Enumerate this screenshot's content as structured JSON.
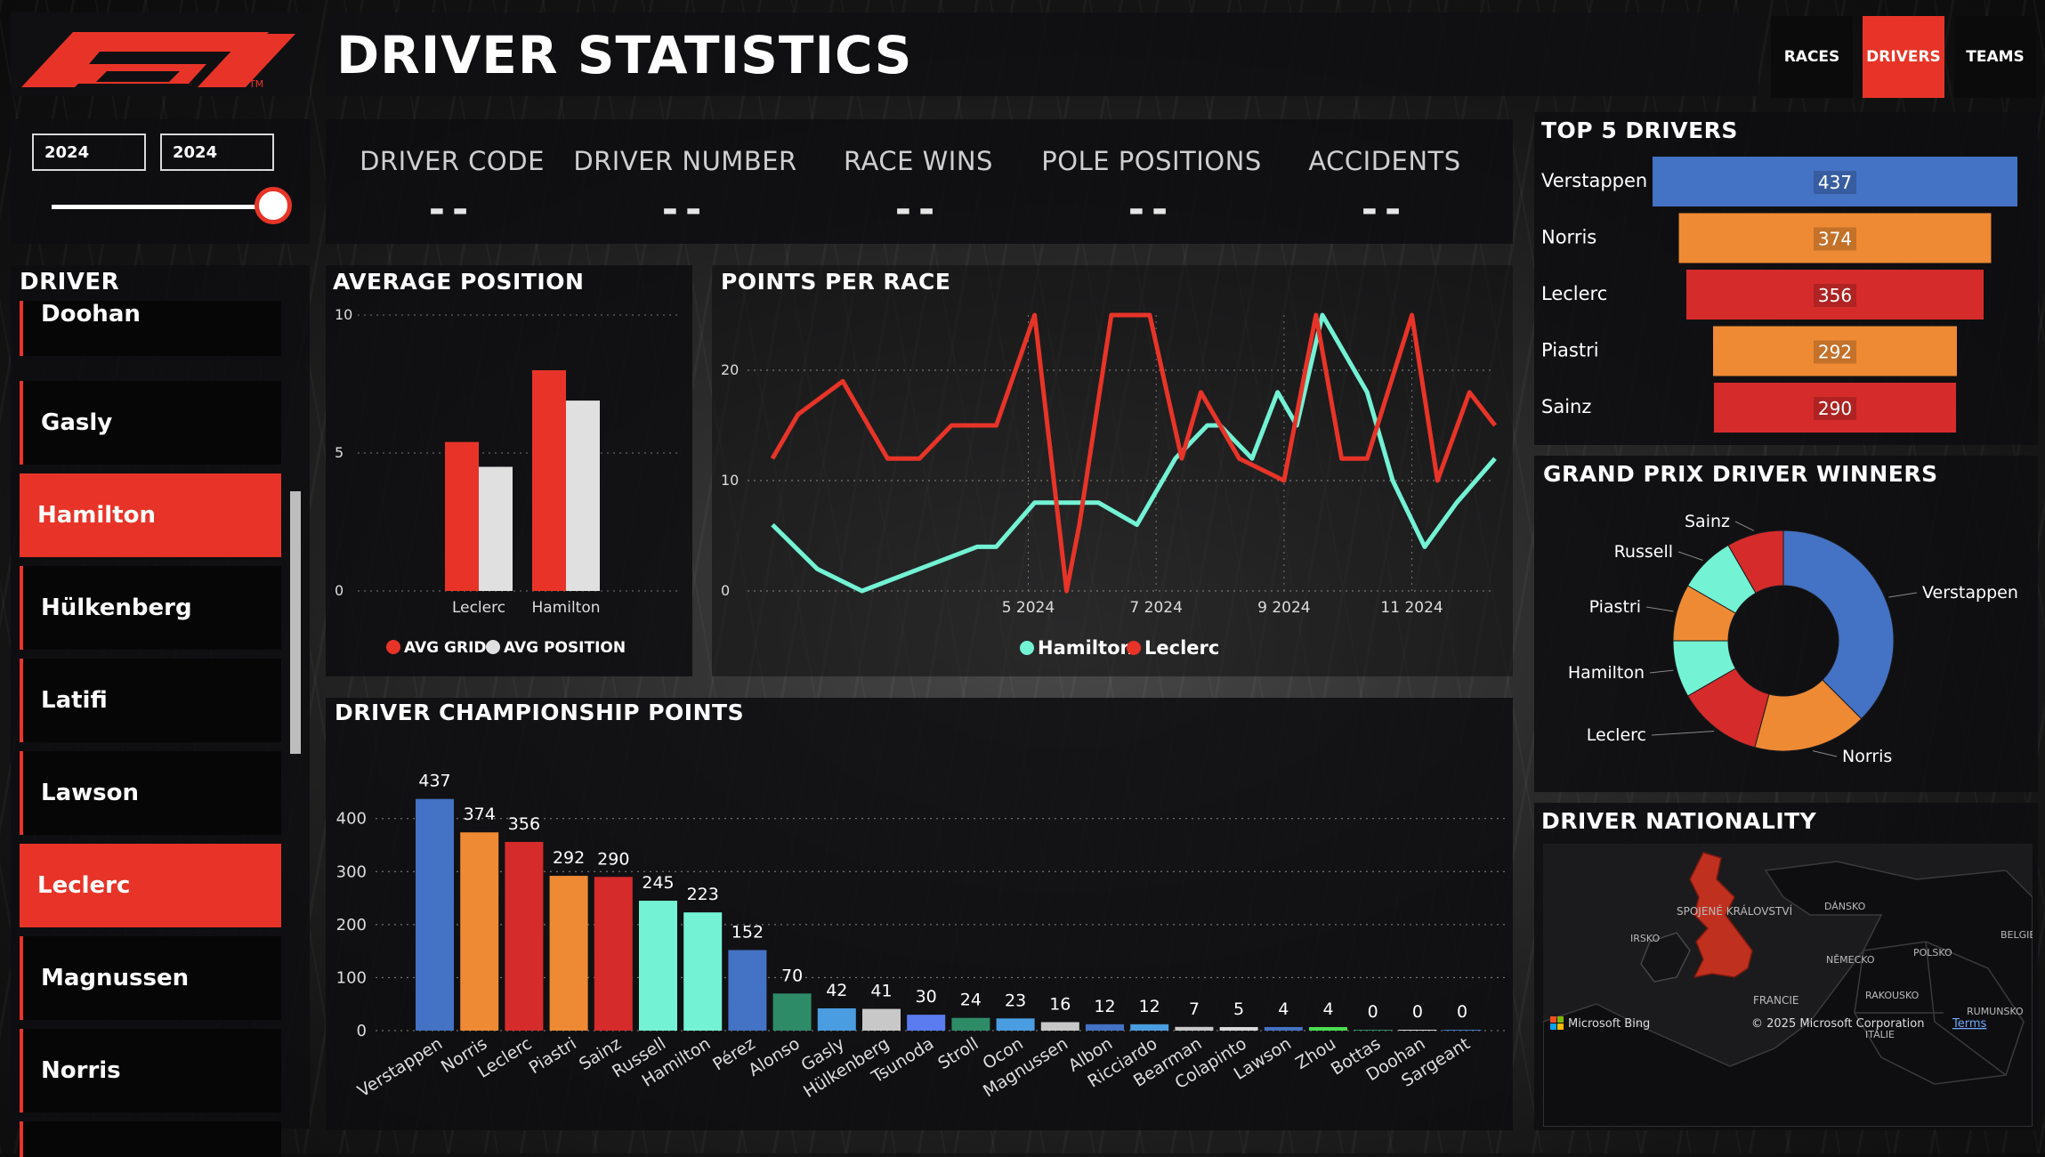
{
  "header": {
    "title": "DRIVER STATISTICS",
    "logo_tm": "TM",
    "nav": [
      {
        "label": "RACES",
        "active": false
      },
      {
        "label": "DRIVERS",
        "active": true
      },
      {
        "label": "TEAMS",
        "active": false
      }
    ]
  },
  "year_filter": {
    "from": "2024",
    "to": "2024",
    "slider_fraction": 1.0
  },
  "kpis": [
    {
      "label": "DRIVER CODE",
      "value": "--"
    },
    {
      "label": "DRIVER NUMBER",
      "value": "--"
    },
    {
      "label": "RACE WINS",
      "value": "--"
    },
    {
      "label": "POLE POSITIONS",
      "value": "--"
    },
    {
      "label": "ACCIDENTS",
      "value": "--"
    }
  ],
  "driver_list": {
    "title": "DRIVER",
    "items": [
      {
        "name": "Doohan",
        "selected": false
      },
      {
        "name": "Gasly",
        "selected": false
      },
      {
        "name": "Hamilton",
        "selected": true
      },
      {
        "name": "Hülkenberg",
        "selected": false
      },
      {
        "name": "Latifi",
        "selected": false
      },
      {
        "name": "Lawson",
        "selected": false
      },
      {
        "name": "Leclerc",
        "selected": true
      },
      {
        "name": "Magnussen",
        "selected": false
      },
      {
        "name": "Norris",
        "selected": false
      },
      {
        "name": "",
        "selected": false
      }
    ]
  },
  "colors": {
    "accent": "#e83428",
    "blue": "#4472c4",
    "orange": "#ef8a34",
    "red": "#d62b2b",
    "mint": "#73f2d4",
    "light": "#dcdcdc"
  },
  "chart_data": [
    {
      "id": "avg_position",
      "type": "bar",
      "title": "AVERAGE POSITION",
      "categories": [
        "Leclerc",
        "Hamilton"
      ],
      "series": [
        {
          "name": "AVG GRID",
          "color": "#e83428",
          "values": [
            5.4,
            8.0
          ]
        },
        {
          "name": "AVG POSITION",
          "color": "#e0e0e0",
          "values": [
            4.5,
            6.9
          ]
        }
      ],
      "ylim": [
        0,
        10
      ],
      "yticks": [
        0,
        5,
        10
      ],
      "legend": "bottom"
    },
    {
      "id": "points_per_race",
      "type": "line",
      "title": "POINTS PER RACE",
      "x_ticks": [
        {
          "race": 5,
          "label": "5 2024"
        },
        {
          "race": 7,
          "label": "7 2024"
        },
        {
          "race": 9,
          "label": "9 2024"
        },
        {
          "race": 11,
          "label": "11 2024"
        }
      ],
      "ylim": [
        0,
        25
      ],
      "yticks": [
        0,
        10,
        20
      ],
      "series": [
        {
          "name": "Hamilton",
          "color": "#73f2d4",
          "x": [
            1.0,
            1.7,
            2.4,
            3.3,
            4.2,
            4.5,
            5.1,
            6.1,
            6.7,
            7.3,
            7.8,
            8.0,
            8.5,
            8.9,
            9.2,
            9.6,
            10.3,
            10.7,
            11.2,
            11.7,
            12.3
          ],
          "values": [
            6,
            2,
            0,
            2,
            4,
            4,
            8,
            8,
            6,
            12,
            15,
            15,
            12,
            18,
            15,
            25,
            18,
            10,
            4,
            8,
            12
          ]
        },
        {
          "name": "Leclerc",
          "color": "#e83428",
          "x": [
            1.0,
            1.4,
            2.1,
            2.8,
            3.3,
            3.8,
            4.5,
            5.1,
            5.6,
            5.8,
            6.3,
            6.9,
            7.4,
            7.7,
            8.3,
            9.0,
            9.5,
            9.9,
            10.3,
            11.0,
            11.4,
            11.9,
            12.3
          ],
          "values": [
            12,
            16,
            19,
            12,
            12,
            15,
            15,
            25,
            0,
            6,
            25,
            25,
            12,
            18,
            12,
            10,
            25,
            12,
            12,
            25,
            10,
            18,
            15
          ]
        }
      ],
      "legend": "bottom"
    },
    {
      "id": "championship_points",
      "type": "bar",
      "title": "DRIVER CHAMPIONSHIP POINTS",
      "categories": [
        "Verstappen",
        "Norris",
        "Leclerc",
        "Piastri",
        "Sainz",
        "Russell",
        "Hamilton",
        "Pérez",
        "Alonso",
        "Gasly",
        "Hülkenberg",
        "Tsunoda",
        "Stroll",
        "Ocon",
        "Magnussen",
        "Albon",
        "Ricciardo",
        "Bearman",
        "Colapinto",
        "Lawson",
        "Zhou",
        "Bottas",
        "Doohan",
        "Sargeant"
      ],
      "values": [
        437,
        374,
        356,
        292,
        290,
        245,
        223,
        152,
        70,
        42,
        41,
        30,
        24,
        23,
        16,
        12,
        12,
        7,
        5,
        4,
        4,
        0,
        0,
        0
      ],
      "bar_colors": [
        "#4472c4",
        "#ef8a34",
        "#d62b2b",
        "#ef8a34",
        "#d62b2b",
        "#73f2d4",
        "#73f2d4",
        "#4472c4",
        "#2e8b67",
        "#4a9de0",
        "#c8c8c8",
        "#5b7bf0",
        "#2e8b67",
        "#4a9de0",
        "#c8c8c8",
        "#4472c4",
        "#4a9de0",
        "#c8c8c8",
        "#d8d8d8",
        "#4472c4",
        "#4ade50",
        "#2e8b67",
        "#d8d8d8",
        "#4472c4"
      ],
      "ylim": [
        0,
        460
      ],
      "yticks": [
        0,
        100,
        200,
        300,
        400
      ]
    },
    {
      "id": "top5",
      "type": "bar",
      "title": "TOP 5 DRIVERS",
      "categories": [
        "Verstappen",
        "Norris",
        "Leclerc",
        "Piastri",
        "Sainz"
      ],
      "values": [
        437,
        374,
        356,
        292,
        290
      ],
      "bar_colors": [
        "#4472c4",
        "#ef8a34",
        "#d62b2b",
        "#ef8a34",
        "#d62b2b"
      ],
      "orientation": "horizontal-funnel"
    },
    {
      "id": "gp_winners",
      "type": "pie",
      "title": "GRAND PRIX DRIVER WINNERS",
      "categories": [
        "Verstappen",
        "Norris",
        "Leclerc",
        "Hamilton",
        "Piastri",
        "Russell",
        "Sainz"
      ],
      "values": [
        9,
        4,
        3,
        2,
        2,
        2,
        2
      ],
      "colors": [
        "#4472c4",
        "#ef8a34",
        "#d62b2b",
        "#73f2d4",
        "#ef8a34",
        "#73f2d4",
        "#d62b2b"
      ],
      "donut": true
    }
  ],
  "nationality": {
    "title": "DRIVER NATIONALITY",
    "labels": [
      "SPOJENÉ KRÁLOVSTVÍ",
      "IRSKO",
      "DÁNSKO",
      "NĚMECKO",
      "POLSKO",
      "BELGIE",
      "FRANCIE",
      "RAKOUSKO",
      "RUMUNSKO",
      "ITÁLIE"
    ],
    "attribution": "© 2025 Microsoft Corporation",
    "terms": "Terms",
    "brand": "Microsoft Bing"
  }
}
